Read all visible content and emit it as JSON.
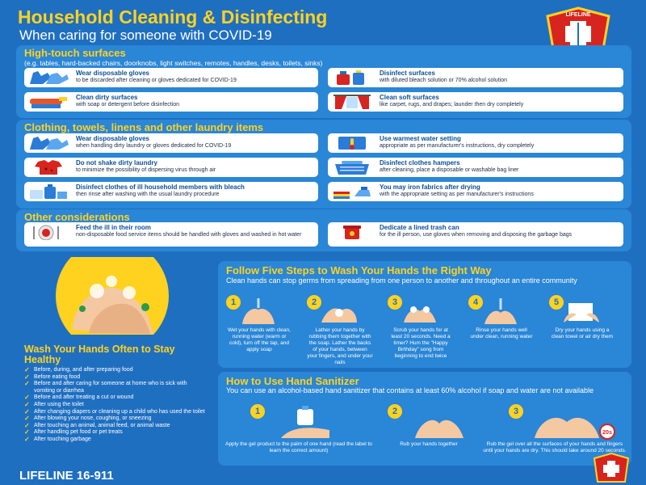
{
  "header": {
    "title": "Household Cleaning & Disinfecting",
    "subtitle": "When caring for someone with COVID-19"
  },
  "logo": {
    "text_top": "LIFELINE",
    "text_bottom": "16-911"
  },
  "high_touch": {
    "title": "High-touch surfaces",
    "subtitle": "(e.g. tables, hard-backed chairs, doorknobs, light switches, remotes, handles, desks, toilets, sinks)",
    "items": [
      {
        "icon": "gloves-icon",
        "title": "Wear disposable gloves",
        "desc": "to be discarded after cleaning or gloves dedicated for COVID-19"
      },
      {
        "icon": "bleach-bottle-icon",
        "title": "Disinfect surfaces",
        "desc": "with diluted bleach solution or 70% alcohol solution"
      },
      {
        "icon": "scrub-brush-icon",
        "title": "Clean dirty surfaces",
        "desc": "with soap or detergent before disinfection"
      },
      {
        "icon": "curtains-icon",
        "title": "Clean soft surfaces",
        "desc": "like carpet, rugs, and drapes; launder then dry completely"
      }
    ]
  },
  "laundry": {
    "title": "Clothing, towels, linens and other laundry items",
    "items": [
      {
        "icon": "gloves-icon",
        "title": "Wear disposable gloves",
        "desc": "when handling dirty laundry or gloves dedicated for COVID-19"
      },
      {
        "icon": "thermometer-icon",
        "title": "Use warmest water setting",
        "desc": "appropriate as per manufacturer's instructions, dry completely"
      },
      {
        "icon": "shirt-icon",
        "title": "Do not shake dirty laundry",
        "desc": "to minimize the possibility of dispersing virus through air"
      },
      {
        "icon": "laundry-basket-icon",
        "title": "Disinfect clothes hampers",
        "desc": "after cleaning, place a disposable or washable bag liner"
      },
      {
        "icon": "detergent-icon",
        "title": "Disinfect clothes of ill household members with bleach",
        "desc": "then rinse after washing with the usual laundry procedure"
      },
      {
        "icon": "iron-icon",
        "title": "You may iron fabrics after drying",
        "desc": "with the appropriate setting as per manufacturer's instructions"
      }
    ]
  },
  "other": {
    "title": "Other considerations",
    "items": [
      {
        "icon": "food-plate-icon",
        "title": "Feed the ill in their room",
        "desc": "non-disposable food service items should be handled with gloves and washed in hot water"
      },
      {
        "icon": "trash-can-icon",
        "title": "Dedicate a lined trash can",
        "desc": "for the ill person, use gloves when removing and disposing the garbage bags"
      }
    ]
  },
  "five_steps": {
    "title": "Follow Five Steps to Wash Your Hands the Right Way",
    "text": "Clean hands can stop germs from spreading from one person to another and throughout an entire community",
    "steps": [
      {
        "num": "1",
        "caption": "Wet your hands with clean, running water (warm or cold), turn off the tap, and apply soap"
      },
      {
        "num": "2",
        "caption": "Lather your hands by rubbing them together with the soap. Lather the backs of your hands, between your fingers, and under your nails"
      },
      {
        "num": "3",
        "caption": "Scrub your hands for at least 20 seconds. Need a timer? Hum the \"Happy Birthday\" song from beginning to end twice"
      },
      {
        "num": "4",
        "caption": "Rinse your hands well under clean, running water"
      },
      {
        "num": "5",
        "caption": "Dry your hands using a clean towel or air dry them"
      }
    ]
  },
  "sanitizer": {
    "title": "How to Use Hand Sanitizer",
    "text": "You can use an alcohol-based hand sanitizer that contains at least 60% alcohol if soap and water are not available",
    "timer_label": "20s",
    "steps": [
      {
        "num": "1",
        "caption": "Apply the gel product to the palm of one hand (read the label to learn the correct amount)"
      },
      {
        "num": "2",
        "caption": "Rub your hands together"
      },
      {
        "num": "3",
        "caption": "Rub the gel over all the surfaces of your hands and fingers until your hands are dry. This should take around 20 seconds."
      }
    ]
  },
  "wash_often": {
    "title": "Wash Your Hands Often to Stay Healthy",
    "items": [
      "Before, during, and after preparing food",
      "Before eating food",
      "Before and after caring for someone at home who is sick with vomiting or diarrhea",
      "Before and after treating a cut or wound",
      "After using the toilet",
      "After changing diapers or cleaning up a child who has used the toilet",
      "After blowing your nose, coughing, or sneezing",
      "After touching an animal, animal feed, or animal waste",
      "After handling pet food or pet treats",
      "After touching garbage"
    ]
  },
  "footer": {
    "text": "LIFELINE 16-911"
  },
  "colors": {
    "background": "#1f6fc1",
    "accent": "#ffd21f",
    "panel": "#2a86d6",
    "logo_red": "#d8241f"
  }
}
